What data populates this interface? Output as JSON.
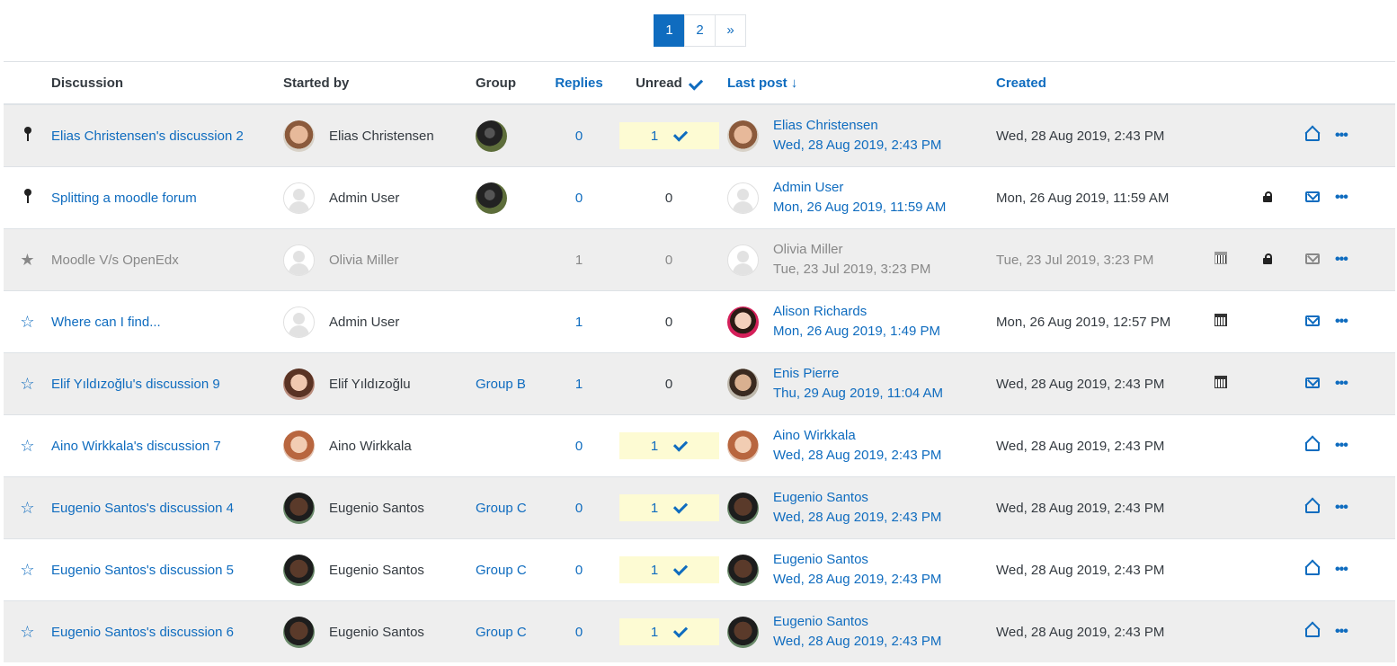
{
  "pagination": {
    "pages": [
      "1",
      "2"
    ],
    "next": "»"
  },
  "headers": {
    "discussion": "Discussion",
    "started_by": "Started by",
    "group": "Group",
    "replies": "Replies",
    "unread": "Unread",
    "last_post": "Last post",
    "created": "Created"
  },
  "rows": [
    {
      "discussion": "Elias Christensen's discussion 2",
      "started_by": "Elias Christensen",
      "group": "",
      "replies": "0",
      "unread": "1",
      "last_user": "Elias Christensen",
      "last_date": "Wed, 28 Aug 2019, 2:43 PM",
      "created": "Wed, 28 Aug 2019, 2:43 PM"
    },
    {
      "discussion": "Splitting a moodle forum",
      "started_by": "Admin User",
      "group": "",
      "replies": "0",
      "unread": "0",
      "last_user": "Admin User",
      "last_date": "Mon, 26 Aug 2019, 11:59 AM",
      "created": "Mon, 26 Aug 2019, 11:59 AM"
    },
    {
      "discussion": "Moodle V/s OpenEdx",
      "started_by": "Olivia Miller",
      "group": "",
      "replies": "1",
      "unread": "0",
      "last_user": "Olivia Miller",
      "last_date": "Tue, 23 Jul 2019, 3:23 PM",
      "created": "Tue, 23 Jul 2019, 3:23 PM"
    },
    {
      "discussion": "Where can I find...",
      "started_by": "Admin User",
      "group": "",
      "replies": "1",
      "unread": "0",
      "last_user": "Alison Richards",
      "last_date": "Mon, 26 Aug 2019, 1:49 PM",
      "created": "Mon, 26 Aug 2019, 12:57 PM"
    },
    {
      "discussion": "Elif Yıldızoğlu's discussion 9",
      "started_by": "Elif Yıldızoğlu",
      "group": "Group B",
      "replies": "1",
      "unread": "0",
      "last_user": "Enis Pierre",
      "last_date": "Thu, 29 Aug 2019, 11:04 AM",
      "created": "Wed, 28 Aug 2019, 2:43 PM"
    },
    {
      "discussion": "Aino Wirkkala's discussion 7",
      "started_by": "Aino Wirkkala",
      "group": "",
      "replies": "0",
      "unread": "1",
      "last_user": "Aino Wirkkala",
      "last_date": "Wed, 28 Aug 2019, 2:43 PM",
      "created": "Wed, 28 Aug 2019, 2:43 PM"
    },
    {
      "discussion": "Eugenio Santos's discussion 4",
      "started_by": "Eugenio Santos",
      "group": "Group C",
      "replies": "0",
      "unread": "1",
      "last_user": "Eugenio Santos",
      "last_date": "Wed, 28 Aug 2019, 2:43 PM",
      "created": "Wed, 28 Aug 2019, 2:43 PM"
    },
    {
      "discussion": "Eugenio Santos's discussion 5",
      "started_by": "Eugenio Santos",
      "group": "Group C",
      "replies": "0",
      "unread": "1",
      "last_user": "Eugenio Santos",
      "last_date": "Wed, 28 Aug 2019, 2:43 PM",
      "created": "Wed, 28 Aug 2019, 2:43 PM"
    },
    {
      "discussion": "Eugenio Santos's discussion 6",
      "started_by": "Eugenio Santos",
      "group": "Group C",
      "replies": "0",
      "unread": "1",
      "last_user": "Eugenio Santos",
      "last_date": "Wed, 28 Aug 2019, 2:43 PM",
      "created": "Wed, 28 Aug 2019, 2:43 PM"
    }
  ],
  "colors": {
    "link": "#0f6cbf",
    "unread_bg": "#fdfbd3",
    "shaded_row": "#eeeeee"
  }
}
